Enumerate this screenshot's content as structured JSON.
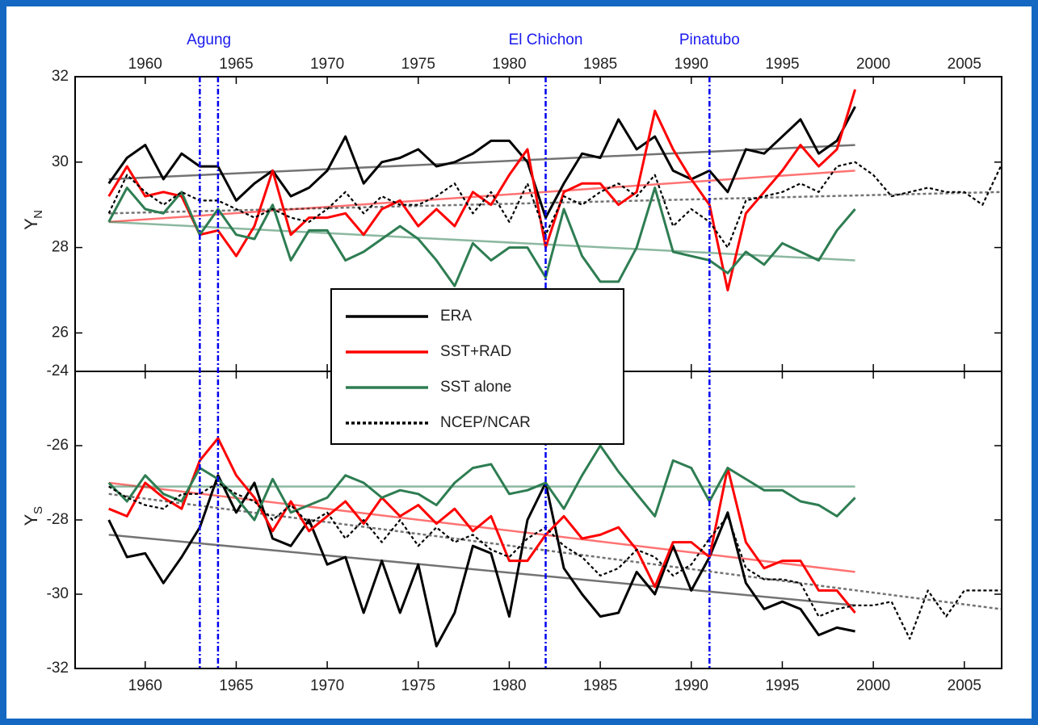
{
  "chart_data": {
    "type": "line",
    "x": [
      1958,
      1959,
      1960,
      1961,
      1962,
      1963,
      1964,
      1965,
      1966,
      1967,
      1968,
      1969,
      1970,
      1971,
      1972,
      1973,
      1974,
      1975,
      1976,
      1977,
      1978,
      1979,
      1980,
      1981,
      1982,
      1983,
      1984,
      1985,
      1986,
      1987,
      1988,
      1989,
      1990,
      1991,
      1992,
      1993,
      1994,
      1995,
      1996,
      1997,
      1998,
      1999,
      2000,
      2001,
      2002,
      2003,
      2004,
      2005,
      2006,
      2007
    ],
    "xlim": [
      1956.15,
      2007.05
    ],
    "xticks": [
      1960,
      1965,
      1970,
      1975,
      1980,
      1985,
      1990,
      1995,
      2000,
      2005
    ],
    "events": [
      {
        "label": "Agung",
        "x": [
          1963,
          1964
        ]
      },
      {
        "label": "El Chichon",
        "x": [
          1982
        ]
      },
      {
        "label": "Pinatubo",
        "x": [
          1991
        ]
      }
    ],
    "series": [
      {
        "name": "ERA",
        "color": "#000000",
        "dash": "none"
      },
      {
        "name": "SST+RAD",
        "color": "#ff0000",
        "dash": "none"
      },
      {
        "name": "SST alone",
        "color": "#2e7d52",
        "dash": "none"
      },
      {
        "name": "NCEP/NCAR",
        "color": "#000000",
        "dash": "4 3"
      }
    ],
    "panels": [
      {
        "ylabel": "Y",
        "ylabel_sub": "N",
        "ylim": [
          25.1,
          32
        ],
        "yticks": [
          26,
          28,
          30,
          32
        ],
        "series": [
          {
            "values": [
              29.5,
              30.1,
              30.4,
              29.6,
              30.2,
              29.9,
              29.9,
              29.1,
              29.5,
              29.8,
              29.2,
              29.4,
              29.8,
              30.6,
              29.5,
              30.0,
              30.1,
              30.3,
              29.9,
              30.0,
              30.2,
              30.5,
              30.5,
              30.0,
              28.7,
              29.5,
              30.2,
              30.1,
              31.0,
              30.3,
              30.6,
              29.8,
              29.6,
              29.8,
              29.3,
              30.3,
              30.2,
              30.6,
              31.0,
              30.2,
              30.5,
              31.3,
              null,
              null,
              null,
              null,
              null,
              null,
              null,
              null
            ],
            "trend_x": [
              1958,
              1999
            ],
            "trend": [
              29.6,
              30.4
            ]
          },
          {
            "values": [
              29.2,
              29.9,
              29.2,
              29.3,
              29.2,
              28.3,
              28.4,
              27.8,
              28.5,
              29.8,
              28.3,
              28.7,
              28.7,
              28.8,
              28.3,
              28.9,
              29.1,
              28.5,
              28.9,
              28.5,
              29.3,
              29.0,
              29.7,
              30.3,
              28.0,
              29.3,
              29.5,
              29.5,
              29.0,
              29.3,
              31.2,
              30.3,
              29.6,
              29.0,
              27.0,
              28.8,
              29.3,
              29.8,
              30.4,
              29.9,
              30.3,
              31.7,
              null,
              null,
              null,
              null,
              null,
              null,
              null,
              null
            ],
            "trend_x": [
              1958,
              1999
            ],
            "trend": [
              28.6,
              29.8
            ]
          },
          {
            "values": [
              28.6,
              29.4,
              28.9,
              28.8,
              29.3,
              28.3,
              28.9,
              28.3,
              28.2,
              29.0,
              27.7,
              28.4,
              28.4,
              27.7,
              27.9,
              28.2,
              28.5,
              28.2,
              27.7,
              27.1,
              28.1,
              27.7,
              28.0,
              28.0,
              27.3,
              28.9,
              27.8,
              27.2,
              27.2,
              28.0,
              29.4,
              27.9,
              27.8,
              27.7,
              27.4,
              27.9,
              27.6,
              28.1,
              27.9,
              27.7,
              28.4,
              28.9,
              null,
              null,
              null,
              null,
              null,
              null,
              null,
              null
            ],
            "trend_x": [
              1958,
              1999
            ],
            "trend": [
              28.6,
              27.7
            ]
          },
          {
            "values": [
              28.8,
              29.7,
              29.3,
              29.0,
              29.3,
              29.1,
              29.1,
              28.9,
              28.7,
              28.9,
              28.7,
              28.6,
              28.9,
              29.3,
              28.8,
              29.2,
              29.0,
              29.0,
              29.2,
              29.5,
              28.8,
              29.3,
              28.6,
              29.5,
              28.3,
              29.2,
              29.0,
              29.3,
              29.5,
              29.2,
              29.7,
              28.5,
              28.9,
              28.6,
              28.0,
              29.1,
              29.2,
              29.3,
              29.5,
              29.3,
              29.9,
              30.0,
              29.7,
              29.2,
              29.3,
              29.4,
              29.3,
              29.3,
              29.0,
              29.9
            ],
            "trend_x": [
              1958,
              2007
            ],
            "trend": [
              28.8,
              29.3
            ]
          }
        ]
      },
      {
        "ylabel": "Y",
        "ylabel_sub": "S",
        "ylim": [
          -32,
          -24
        ],
        "yticks": [
          -32,
          -30,
          -28,
          -26,
          -24
        ],
        "series": [
          {
            "values": [
              -28.0,
              -29.0,
              -28.9,
              -29.7,
              -29.0,
              -28.2,
              -26.8,
              -27.8,
              -27.0,
              -28.5,
              -28.7,
              -28.0,
              -29.2,
              -29.0,
              -30.5,
              -29.1,
              -30.5,
              -29.2,
              -31.4,
              -30.5,
              -28.7,
              -28.9,
              -30.6,
              -28.0,
              -27.0,
              -29.3,
              -30.0,
              -30.6,
              -30.5,
              -29.4,
              -30.0,
              -28.7,
              -29.9,
              -29.0,
              -27.8,
              -29.7,
              -30.4,
              -30.2,
              -30.4,
              -31.1,
              -30.9,
              -31.0,
              null,
              null,
              null,
              null,
              null,
              null,
              null,
              null
            ],
            "trend_x": [
              1958,
              1999
            ],
            "trend": [
              -28.4,
              -30.3
            ]
          },
          {
            "values": [
              -27.7,
              -27.9,
              -27.0,
              -27.4,
              -27.7,
              -26.4,
              -25.8,
              -26.8,
              -27.4,
              -28.3,
              -27.5,
              -28.3,
              -27.9,
              -27.5,
              -28.1,
              -27.4,
              -27.9,
              -27.6,
              -28.1,
              -27.7,
              -28.3,
              -27.9,
              -29.1,
              -29.1,
              -28.4,
              -27.9,
              -28.5,
              -28.4,
              -28.2,
              -28.8,
              -29.8,
              -28.6,
              -28.6,
              -29.0,
              -26.6,
              -28.6,
              -29.3,
              -29.1,
              -29.1,
              -29.9,
              -29.9,
              -30.5,
              null,
              null,
              null,
              null,
              null,
              null,
              null,
              null
            ],
            "trend_x": [
              1958,
              1999
            ],
            "trend": [
              -27.0,
              -29.4
            ]
          },
          {
            "values": [
              -27.0,
              -27.5,
              -26.8,
              -27.3,
              -27.5,
              -26.6,
              -26.9,
              -27.4,
              -28.0,
              -26.9,
              -27.8,
              -27.6,
              -27.4,
              -26.8,
              -27.0,
              -27.4,
              -27.2,
              -27.3,
              -27.6,
              -27.0,
              -26.6,
              -26.5,
              -27.3,
              -27.2,
              -27.0,
              -27.7,
              -26.8,
              -26.0,
              -26.7,
              -27.3,
              -27.9,
              -26.4,
              -26.6,
              -27.5,
              -26.6,
              -26.9,
              -27.2,
              -27.2,
              -27.5,
              -27.6,
              -27.9,
              -27.4,
              null,
              null,
              null,
              null,
              null,
              null,
              null,
              null
            ],
            "trend_x": [
              1958,
              1999
            ],
            "trend": [
              -27.1,
              -27.1
            ]
          },
          {
            "values": [
              -27.1,
              -27.4,
              -27.6,
              -27.7,
              -27.3,
              -27.3,
              -27.0,
              -27.3,
              -27.5,
              -28.0,
              -27.6,
              -28.1,
              -27.8,
              -28.5,
              -28.0,
              -28.6,
              -28.0,
              -28.7,
              -28.2,
              -28.6,
              -28.4,
              -28.8,
              -29.0,
              -28.5,
              -28.2,
              -28.7,
              -29.0,
              -29.5,
              -29.3,
              -28.8,
              -29.0,
              -29.5,
              -29.2,
              -28.5,
              -27.9,
              -29.3,
              -29.6,
              -29.6,
              -29.7,
              -30.6,
              -30.4,
              -30.3,
              -30.3,
              -30.2,
              -31.2,
              -29.9,
              -30.6,
              -29.9,
              -29.9,
              -29.9
            ],
            "trend_x": [
              1958,
              2007
            ],
            "trend": [
              -27.3,
              -30.4
            ]
          }
        ]
      }
    ]
  }
}
